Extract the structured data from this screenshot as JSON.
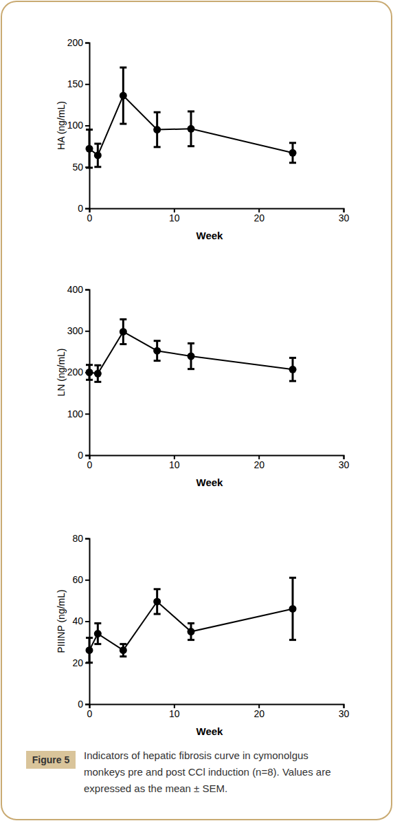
{
  "chart_data": [
    {
      "type": "line",
      "x_label": "Week",
      "y_label": "HA (ng/mL)",
      "x": [
        0,
        1,
        4,
        8,
        12,
        24
      ],
      "series": [
        {
          "values": [
            72,
            64,
            136,
            95,
            96,
            67
          ],
          "errors": [
            23,
            14,
            34,
            21,
            21,
            12
          ],
          "color": "#000000",
          "marker": "circle"
        }
      ],
      "xlim": [
        0,
        30
      ],
      "xticks": [
        0,
        10,
        20,
        30
      ],
      "ylim": [
        0,
        200
      ],
      "yticks": [
        0,
        50,
        100,
        150,
        200
      ],
      "grid": false
    },
    {
      "type": "line",
      "x_label": "Week",
      "y_label": "LN (ng/mL)",
      "x": [
        0,
        1,
        4,
        8,
        12,
        24
      ],
      "series": [
        {
          "values": [
            200,
            197,
            298,
            252,
            239,
            207
          ],
          "errors": [
            18,
            20,
            30,
            24,
            31,
            28
          ],
          "color": "#000000",
          "marker": "circle"
        }
      ],
      "xlim": [
        0,
        30
      ],
      "xticks": [
        0,
        10,
        20,
        30
      ],
      "ylim": [
        0,
        400
      ],
      "yticks": [
        0,
        100,
        200,
        300,
        400
      ],
      "grid": false
    },
    {
      "type": "line",
      "x_label": "Week",
      "y_label": "PIIINP (ng/mL)",
      "x": [
        0,
        1,
        4,
        8,
        12,
        24
      ],
      "series": [
        {
          "values": [
            26,
            34,
            26,
            49.5,
            35,
            46
          ],
          "errors": [
            6,
            5,
            3,
            6,
            4,
            15
          ],
          "color": "#000000",
          "marker": "circle"
        }
      ],
      "xlim": [
        0,
        30
      ],
      "xticks": [
        0,
        10,
        20,
        30
      ],
      "ylim": [
        0,
        80
      ],
      "yticks": [
        0,
        20,
        40,
        60,
        80
      ],
      "grid": false
    }
  ],
  "caption": {
    "label": "Figure 5",
    "lines": [
      "Indicators of hepatic fibrosis curve in cymonolgus",
      "monkeys pre and post CCl induction (n=8). Values are",
      "expressed as the mean ± SEM."
    ]
  }
}
